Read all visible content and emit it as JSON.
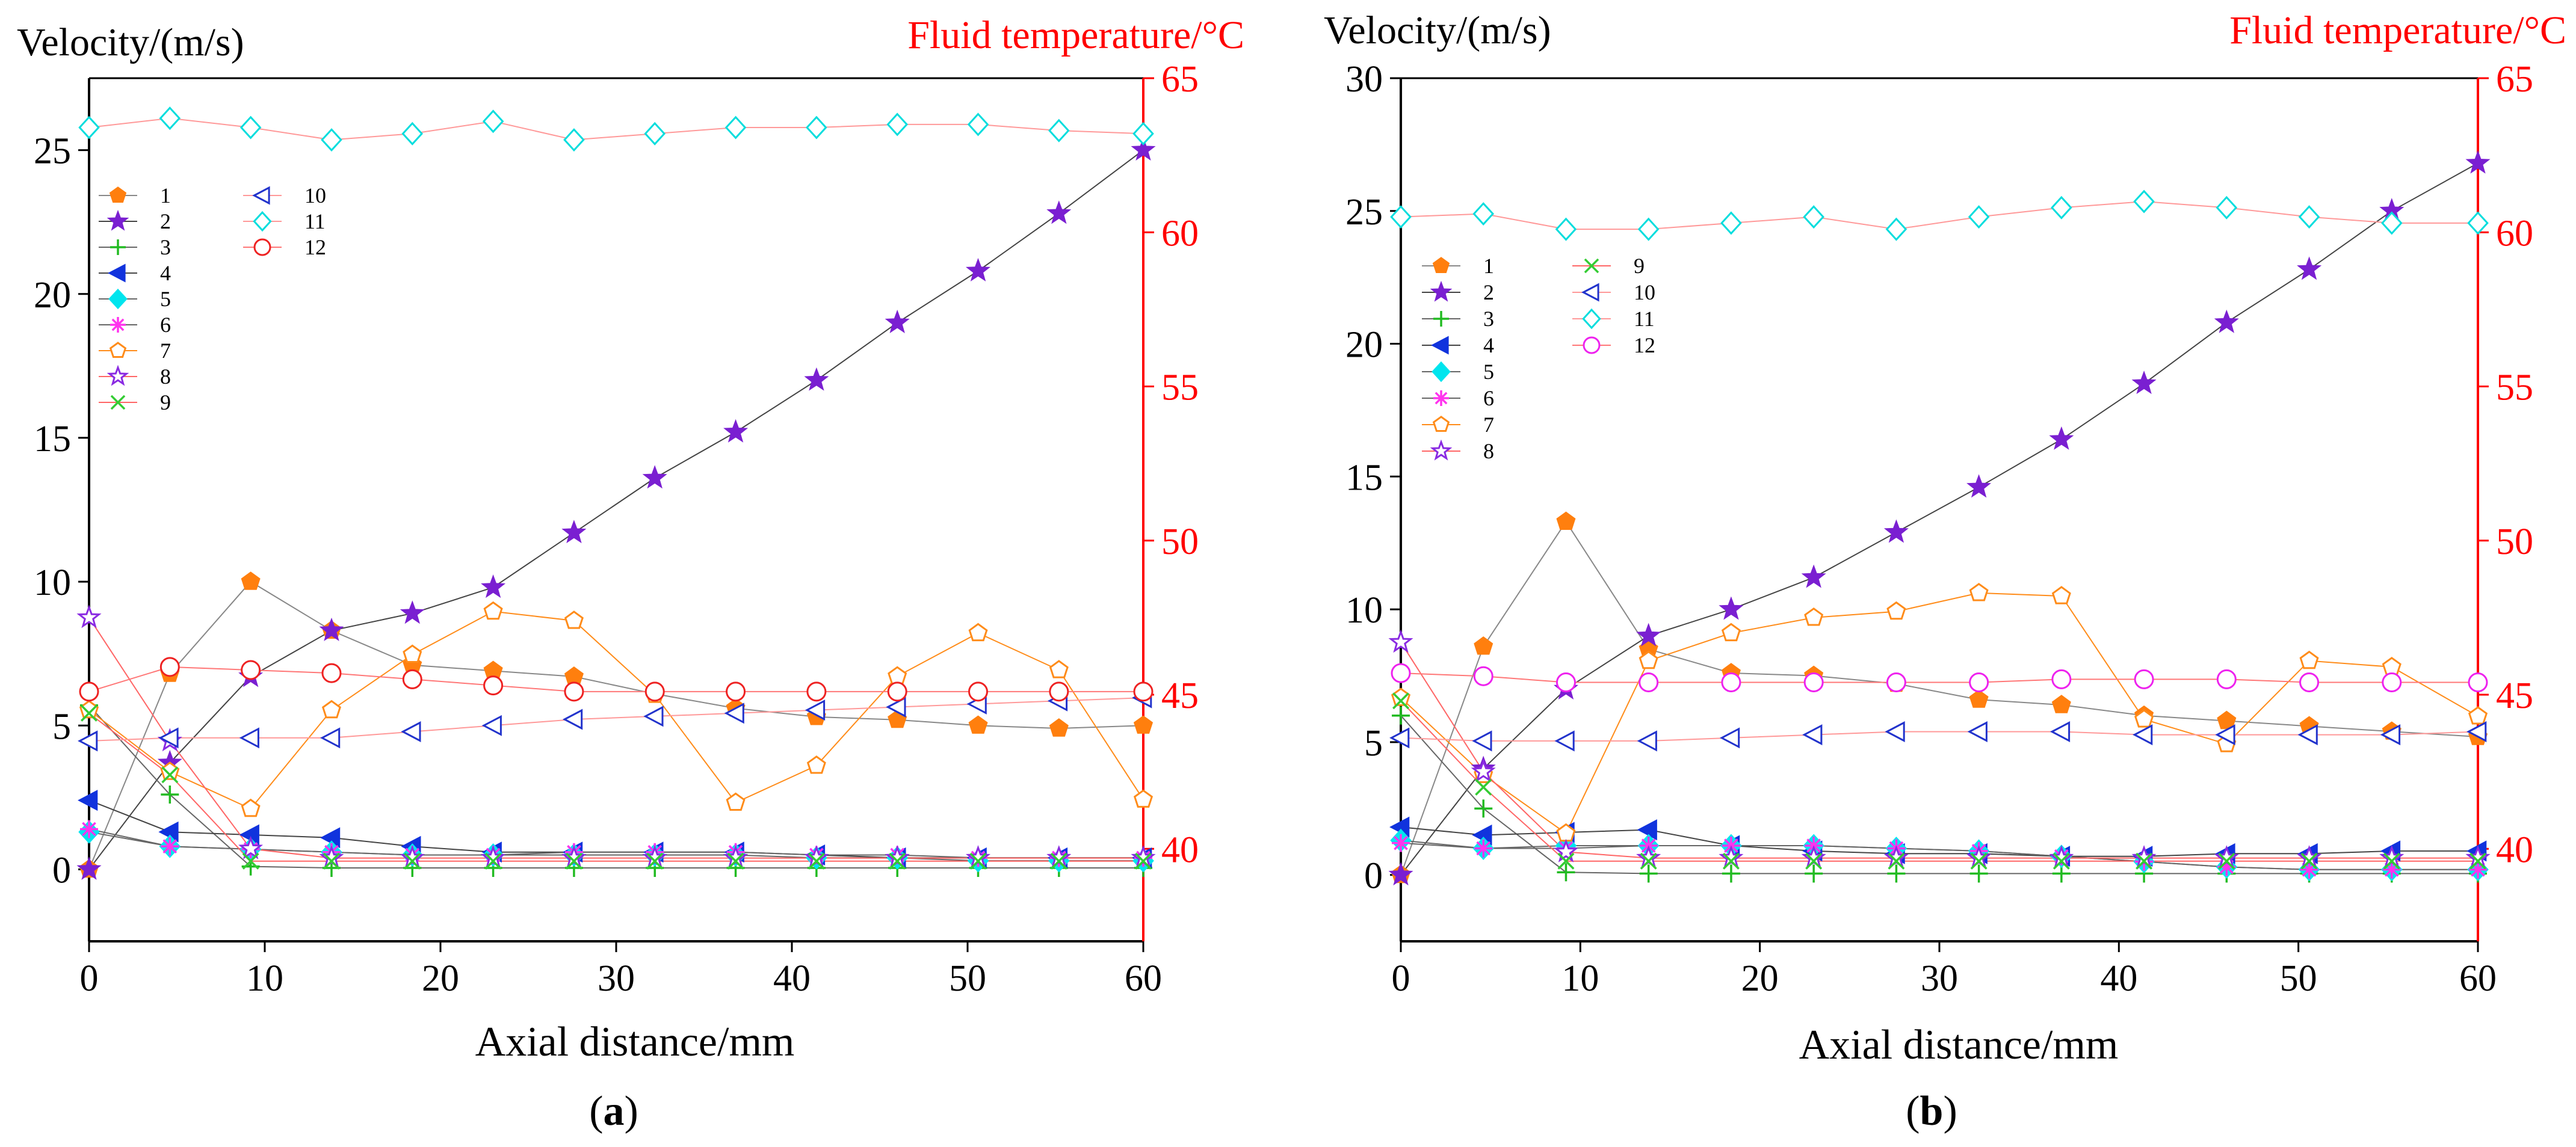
{
  "chart_data": [
    {
      "type": "line",
      "panel_label_open": "(",
      "panel_label": "a",
      "panel_label_close": ")",
      "ylabel_left": "Velocity/(m/s)",
      "ylabel_right": "Fluid temperature/°C",
      "xlabel": "Axial distance/mm",
      "xlim": [
        0,
        60
      ],
      "ylim_left": [
        -2.5,
        27.5
      ],
      "ylim_right": [
        37,
        65
      ],
      "xticks": [
        0,
        10,
        20,
        30,
        40,
        50,
        60
      ],
      "yticks_left": [
        0,
        5,
        10,
        15,
        20,
        25
      ],
      "yticks_right": [
        40,
        45,
        50,
        55,
        60,
        65
      ],
      "x": [
        0,
        4.6,
        9.2,
        13.8,
        18.4,
        23,
        27.6,
        32.2,
        36.8,
        41.4,
        46,
        50.6,
        55.2,
        60
      ],
      "legend_columns": [
        [
          "1",
          "2",
          "3",
          "4",
          "5",
          "6",
          "7",
          "8",
          "9"
        ],
        [
          "10",
          "11",
          "12"
        ]
      ],
      "series": [
        {
          "name": "1",
          "axis": "left",
          "values": [
            0,
            6.8,
            10.0,
            8.3,
            7.1,
            6.9,
            6.7,
            6.1,
            5.6,
            5.3,
            5.2,
            5.0,
            4.9,
            5.0
          ]
        },
        {
          "name": "2",
          "axis": "left",
          "values": [
            0,
            3.7,
            6.7,
            8.3,
            8.9,
            9.8,
            11.7,
            13.6,
            15.2,
            17.0,
            19.0,
            20.8,
            22.8,
            25.0
          ]
        },
        {
          "name": "3",
          "axis": "left",
          "values": [
            5.7,
            2.6,
            0.1,
            0.05,
            0.05,
            0.05,
            0.05,
            0.05,
            0.05,
            0.05,
            0.05,
            0.05,
            0.05,
            0.05
          ]
        },
        {
          "name": "4",
          "axis": "left",
          "values": [
            2.4,
            1.3,
            1.2,
            1.1,
            0.8,
            0.6,
            0.6,
            0.6,
            0.6,
            0.5,
            0.4,
            0.4,
            0.4,
            0.4
          ]
        },
        {
          "name": "5",
          "axis": "left",
          "values": [
            1.3,
            0.8,
            0.7,
            0.6,
            0.5,
            0.5,
            0.5,
            0.5,
            0.5,
            0.4,
            0.4,
            0.3,
            0.3,
            0.3
          ]
        },
        {
          "name": "6",
          "axis": "left",
          "values": [
            1.4,
            0.8,
            0.7,
            0.6,
            0.5,
            0.5,
            0.6,
            0.6,
            0.6,
            0.5,
            0.5,
            0.4,
            0.4,
            0.4
          ]
        },
        {
          "name": "7",
          "axis": "right",
          "values": [
            44.5,
            42.5,
            41.3,
            44.5,
            46.3,
            47.7,
            47.4,
            45.0,
            41.5,
            42.7,
            45.6,
            47.0,
            45.8,
            41.6
          ]
        },
        {
          "name": "8",
          "axis": "right",
          "values": [
            47.5,
            43.5,
            40.0,
            39.7,
            39.7,
            39.7,
            39.7,
            39.7,
            39.7,
            39.7,
            39.7,
            39.7,
            39.7,
            39.7
          ]
        },
        {
          "name": "9",
          "axis": "right",
          "values": [
            44.4,
            42.4,
            39.6,
            39.6,
            39.6,
            39.6,
            39.6,
            39.6,
            39.6,
            39.6,
            39.6,
            39.6,
            39.6,
            39.6
          ]
        },
        {
          "name": "10",
          "axis": "right",
          "values": [
            43.5,
            43.6,
            43.6,
            43.6,
            43.8,
            44.0,
            44.2,
            44.3,
            44.4,
            44.5,
            44.6,
            44.7,
            44.8,
            44.9
          ]
        },
        {
          "name": "11",
          "axis": "right",
          "values": [
            63.4,
            63.7,
            63.4,
            63.0,
            63.2,
            63.6,
            63.0,
            63.2,
            63.4,
            63.4,
            63.5,
            63.5,
            63.3,
            63.2
          ]
        },
        {
          "name": "12",
          "axis": "right",
          "values": [
            45.1,
            45.9,
            45.8,
            45.7,
            45.5,
            45.3,
            45.1,
            45.1,
            45.1,
            45.1,
            45.1,
            45.1,
            45.1,
            45.1
          ]
        }
      ]
    },
    {
      "type": "line",
      "panel_label_open": "(",
      "panel_label": "b",
      "panel_label_close": ")",
      "ylabel_left": "Velocity/(m/s)",
      "ylabel_right": "Fluid temperature/°C",
      "xlabel": "Axial distance/mm",
      "xlim": [
        0,
        60
      ],
      "ylim_left": [
        -2.5,
        30
      ],
      "ylim_right": [
        37,
        65
      ],
      "xticks": [
        0,
        10,
        20,
        30,
        40,
        50,
        60
      ],
      "yticks_left": [
        0,
        5,
        10,
        15,
        20,
        25,
        30
      ],
      "yticks_right": [
        40,
        45,
        50,
        55,
        60,
        65
      ],
      "x": [
        0,
        4.6,
        9.2,
        13.8,
        18.4,
        23,
        27.6,
        32.2,
        36.8,
        41.4,
        46,
        50.6,
        55.2,
        60
      ],
      "legend_columns": [
        [
          "1",
          "2",
          "3",
          "4",
          "5",
          "6",
          "7",
          "8"
        ],
        [
          "9",
          "10",
          "11",
          "12"
        ]
      ],
      "series": [
        {
          "name": "1",
          "axis": "left",
          "values": [
            0,
            8.6,
            13.3,
            8.5,
            7.6,
            7.5,
            7.2,
            6.6,
            6.4,
            6.0,
            5.8,
            5.6,
            5.4,
            5.2
          ]
        },
        {
          "name": "2",
          "axis": "left",
          "values": [
            0,
            4.0,
            7.0,
            9.0,
            10.0,
            11.2,
            12.9,
            14.6,
            16.4,
            18.5,
            20.8,
            22.8,
            25.0,
            26.8
          ]
        },
        {
          "name": "3",
          "axis": "left",
          "values": [
            6.0,
            2.5,
            0.1,
            0.05,
            0.05,
            0.05,
            0.05,
            0.05,
            0.05,
            0.05,
            0.05,
            0.05,
            0.05,
            0.05
          ]
        },
        {
          "name": "4",
          "axis": "left",
          "values": [
            1.8,
            1.5,
            1.6,
            1.7,
            1.1,
            0.9,
            0.8,
            0.8,
            0.7,
            0.7,
            0.8,
            0.8,
            0.9,
            0.9
          ]
        },
        {
          "name": "5",
          "axis": "left",
          "values": [
            1.3,
            1.0,
            1.1,
            1.1,
            1.1,
            1.1,
            1.0,
            0.9,
            0.7,
            0.5,
            0.3,
            0.2,
            0.2,
            0.2
          ]
        },
        {
          "name": "6",
          "axis": "left",
          "values": [
            1.2,
            1.0,
            1.0,
            1.1,
            1.1,
            1.1,
            1.0,
            0.9,
            0.7,
            0.5,
            0.3,
            0.2,
            0.2,
            0.2
          ]
        },
        {
          "name": "7",
          "axis": "right",
          "values": [
            44.9,
            42.4,
            40.5,
            46.1,
            47.0,
            47.5,
            47.7,
            48.3,
            48.2,
            44.2,
            43.4,
            46.1,
            45.9,
            44.3
          ]
        },
        {
          "name": "8",
          "axis": "right",
          "values": [
            46.7,
            42.5,
            39.9,
            39.7,
            39.7,
            39.7,
            39.7,
            39.7,
            39.7,
            39.7,
            39.7,
            39.7,
            39.7,
            39.7
          ]
        },
        {
          "name": "9",
          "axis": "right",
          "values": [
            44.8,
            42.0,
            39.6,
            39.6,
            39.6,
            39.6,
            39.6,
            39.6,
            39.6,
            39.6,
            39.6,
            39.6,
            39.6,
            39.6
          ]
        },
        {
          "name": "10",
          "axis": "right",
          "values": [
            43.6,
            43.5,
            43.5,
            43.5,
            43.6,
            43.7,
            43.8,
            43.8,
            43.8,
            43.7,
            43.7,
            43.7,
            43.7,
            43.8
          ]
        },
        {
          "name": "11",
          "axis": "right",
          "values": [
            60.5,
            60.6,
            60.1,
            60.1,
            60.3,
            60.5,
            60.1,
            60.5,
            60.8,
            61.0,
            60.8,
            60.5,
            60.3,
            60.3
          ]
        },
        {
          "name": "12",
          "axis": "right",
          "values": [
            45.7,
            45.6,
            45.4,
            45.4,
            45.4,
            45.4,
            45.4,
            45.4,
            45.5,
            45.5,
            45.5,
            45.4,
            45.4,
            45.4
          ]
        }
      ]
    }
  ],
  "series_styles": {
    "1": {
      "marker": "pentagon",
      "filled": true,
      "color": "#ff7f0e",
      "line": "#888888"
    },
    "2": {
      "marker": "star",
      "filled": true,
      "color": "#7a1fd1",
      "line": "#444444"
    },
    "3": {
      "marker": "plus",
      "filled": false,
      "color": "#22bb22",
      "line": "#666666"
    },
    "4": {
      "marker": "triangle-left",
      "filled": true,
      "color": "#1133dd",
      "line": "#444444"
    },
    "5": {
      "marker": "diamond",
      "filled": true,
      "color": "#00e5ee",
      "line": "#666666"
    },
    "6": {
      "marker": "asterisk",
      "filled": false,
      "color": "#ff33ee",
      "line": "#666666"
    },
    "7": {
      "marker": "pentagon",
      "filled": false,
      "color": "#ff8c1a",
      "line": "#ff8c1a"
    },
    "8": {
      "marker": "star",
      "filled": false,
      "color": "#8a2be2",
      "line": "#ff6666"
    },
    "9": {
      "marker": "cross",
      "filled": false,
      "color": "#33cc33",
      "line": "#ff6666"
    },
    "10": {
      "marker": "triangle-left",
      "filled": false,
      "color": "#2233cc",
      "line": "#ff9999"
    },
    "11": {
      "marker": "diamond",
      "filled": false,
      "color": "#00dddd",
      "line": "#ff9999"
    },
    "12": {
      "marker": "circle",
      "filled": false,
      "color": "#ee2222",
      "line": "#ff7777"
    }
  },
  "series_styles_b_overrides": {
    "12": {
      "color": "#ee22ee"
    }
  },
  "colors": {
    "left_axis": "#000000",
    "right_axis": "#ff0000"
  }
}
